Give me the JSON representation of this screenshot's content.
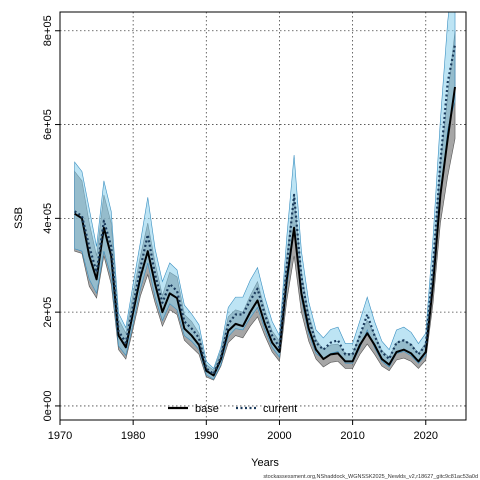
{
  "chart_data": {
    "type": "line",
    "xlabel": "Years",
    "ylabel": "SSB",
    "xlim": [
      1970,
      2025.5
    ],
    "ylim": [
      -30000,
      840000
    ],
    "x_ticks": [
      1970,
      1980,
      1990,
      2000,
      2010,
      2020
    ],
    "y_ticks": [
      0,
      200000,
      400000,
      600000,
      800000
    ],
    "y_tick_labels": [
      "0e+00",
      "2e+05",
      "4e+05",
      "6e+05",
      "8e+05"
    ],
    "grid": true,
    "legend_position": "bottom-center",
    "footnote": "stockassessment.org,NShaddock_WGNSSK2025_Newlds_v2,r18627_gitc9c81ac53a0d",
    "x": [
      1972,
      1973,
      1974,
      1975,
      1976,
      1977,
      1978,
      1979,
      1980,
      1981,
      1982,
      1983,
      1984,
      1985,
      1986,
      1987,
      1988,
      1989,
      1990,
      1991,
      1992,
      1993,
      1994,
      1995,
      1996,
      1997,
      1998,
      1999,
      2000,
      2001,
      2002,
      2003,
      2004,
      2005,
      2006,
      2007,
      2008,
      2009,
      2010,
      2011,
      2012,
      2013,
      2014,
      2015,
      2016,
      2017,
      2018,
      2019,
      2020,
      2021,
      2022,
      2023,
      2024
    ],
    "series": [
      {
        "name": "base",
        "color": "#000000",
        "band_color": "#808080",
        "values": [
          410000,
          400000,
          320000,
          270000,
          380000,
          320000,
          150000,
          125000,
          200000,
          275000,
          330000,
          260000,
          200000,
          240000,
          230000,
          165000,
          150000,
          130000,
          75000,
          65000,
          100000,
          160000,
          175000,
          170000,
          200000,
          225000,
          175000,
          135000,
          115000,
          270000,
          380000,
          240000,
          165000,
          120000,
          100000,
          110000,
          112000,
          95000,
          95000,
          130000,
          155000,
          130000,
          100000,
          88000,
          115000,
          120000,
          112000,
          95000,
          115000,
          260000,
          450000,
          570000,
          680000
        ],
        "lower": [
          330000,
          325000,
          255000,
          230000,
          320000,
          260000,
          120000,
          100000,
          165000,
          235000,
          280000,
          220000,
          170000,
          205000,
          195000,
          140000,
          125000,
          110000,
          62000,
          55000,
          85000,
          135000,
          150000,
          145000,
          170000,
          190000,
          150000,
          115000,
          95000,
          225000,
          320000,
          200000,
          138000,
          100000,
          83000,
          93000,
          95000,
          80000,
          80000,
          110000,
          132000,
          110000,
          85000,
          75000,
          98000,
          102000,
          95000,
          80000,
          98000,
          220000,
          390000,
          490000,
          570000
        ],
        "upper": [
          500000,
          480000,
          390000,
          320000,
          450000,
          390000,
          185000,
          155000,
          240000,
          320000,
          390000,
          305000,
          235000,
          285000,
          275000,
          195000,
          180000,
          155000,
          88000,
          76000,
          118000,
          190000,
          205000,
          200000,
          235000,
          265000,
          205000,
          160000,
          138000,
          320000,
          450000,
          285000,
          196000,
          142000,
          120000,
          130000,
          132000,
          112000,
          112000,
          152000,
          182000,
          153000,
          118000,
          104000,
          135000,
          140000,
          132000,
          112000,
          135000,
          300000,
          520000,
          660000,
          800000
        ]
      },
      {
        "name": "current",
        "color": "#1a3a5c",
        "band_color": "#87ceeb",
        "values": [
          415000,
          405000,
          340000,
          285000,
          395000,
          340000,
          160000,
          135000,
          215000,
          295000,
          365000,
          280000,
          220000,
          260000,
          245000,
          180000,
          165000,
          145000,
          80000,
          68000,
          105000,
          175000,
          195000,
          195000,
          225000,
          250000,
          195000,
          150000,
          125000,
          300000,
          450000,
          275000,
          185000,
          135000,
          120000,
          135000,
          140000,
          110000,
          110000,
          150000,
          195000,
          150000,
          115000,
          100000,
          135000,
          140000,
          130000,
          110000,
          130000,
          300000,
          520000,
          690000,
          770000
        ],
        "lower": [
          335000,
          330000,
          270000,
          240000,
          330000,
          275000,
          128000,
          108000,
          175000,
          250000,
          305000,
          232000,
          182000,
          218000,
          205000,
          150000,
          138000,
          120000,
          66000,
          57000,
          88000,
          148000,
          165000,
          162000,
          188000,
          210000,
          163000,
          125000,
          104000,
          250000,
          375000,
          228000,
          153000,
          112000,
          100000,
          112000,
          116000,
          91000,
          91000,
          124000,
          162000,
          124000,
          95000,
          83000,
          112000,
          116000,
          107000,
          91000,
          108000,
          250000,
          440000,
          590000,
          650000
        ],
        "upper": [
          520000,
          500000,
          420000,
          340000,
          480000,
          415000,
          198000,
          167000,
          260000,
          350000,
          445000,
          335000,
          265000,
          305000,
          290000,
          215000,
          196000,
          173000,
          95000,
          80000,
          125000,
          210000,
          232000,
          232000,
          268000,
          295000,
          232000,
          180000,
          150000,
          360000,
          535000,
          330000,
          222000,
          162000,
          145000,
          163000,
          168000,
          133000,
          133000,
          182000,
          232000,
          180000,
          138000,
          120000,
          162000,
          168000,
          157000,
          133000,
          155000,
          360000,
          610000,
          820000,
          960000
        ]
      }
    ]
  }
}
